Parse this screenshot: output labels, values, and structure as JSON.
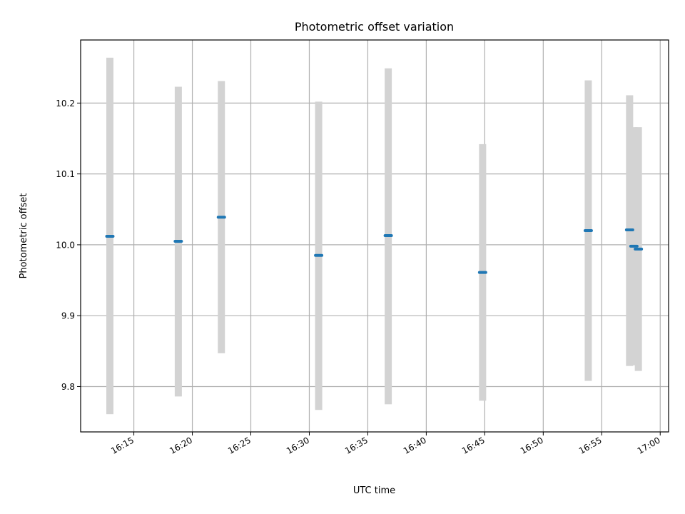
{
  "chart_data": {
    "type": "scatter",
    "title": "Photometric offset variation",
    "xlabel": "UTC time",
    "ylabel": "Photometric offset",
    "x_tick_labels": [
      "16:15",
      "16:20",
      "16:25",
      "16:30",
      "16:35",
      "16:40",
      "16:45",
      "16:50",
      "16:55",
      "17:00"
    ],
    "y_ticks": [
      9.8,
      9.9,
      10.0,
      10.1,
      10.2
    ],
    "y_tick_labels": [
      "9.8",
      "9.9",
      "10.0",
      "10.1",
      "10.2"
    ],
    "xlim": [
      "16:10:27",
      "17:00:43"
    ],
    "ylim": [
      9.736,
      10.289
    ],
    "grid": true,
    "series": [
      {
        "points": [
          {
            "x": "16:12:57",
            "y": 10.012,
            "ylow": 9.761,
            "yhigh": 10.264
          },
          {
            "x": "16:18:48",
            "y": 10.005,
            "ylow": 9.786,
            "yhigh": 10.223
          },
          {
            "x": "16:22:29",
            "y": 10.039,
            "ylow": 9.847,
            "yhigh": 10.231
          },
          {
            "x": "16:30:48",
            "y": 9.985,
            "ylow": 9.767,
            "yhigh": 10.202
          },
          {
            "x": "16:36:45",
            "y": 10.013,
            "ylow": 9.775,
            "yhigh": 10.249
          },
          {
            "x": "16:44:49",
            "y": 9.961,
            "ylow": 9.78,
            "yhigh": 10.142
          },
          {
            "x": "16:53:51",
            "y": 10.02,
            "ylow": 9.808,
            "yhigh": 10.232
          },
          {
            "x": "16:57:23",
            "y": 10.021,
            "ylow": 9.829,
            "yhigh": 10.211
          },
          {
            "x": "16:57:45",
            "y": 9.998,
            "ylow": 9.83,
            "yhigh": 10.166
          },
          {
            "x": "16:58:08",
            "y": 9.994,
            "ylow": 9.822,
            "yhigh": 10.166
          }
        ]
      }
    ]
  },
  "colors": {
    "marker": "#1f77b4",
    "errorbar": "#d3d3d3",
    "grid": "#b0b0b0",
    "axes": "#000000"
  }
}
